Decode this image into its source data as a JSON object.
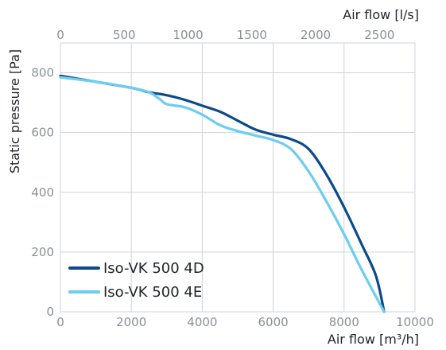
{
  "chart_data": {
    "type": "line",
    "title": "",
    "xlabel": "Air flow [m³/h]",
    "ylabel": "Static pressure [Pa]",
    "x2label": "Air flow [l/s]",
    "xlim": [
      0,
      10000
    ],
    "ylim": [
      0,
      900
    ],
    "x2lim": [
      0,
      2778
    ],
    "xticks": [
      "0",
      "2000",
      "4000",
      "6000",
      "8000",
      "10000"
    ],
    "xtick_values": [
      0,
      2000,
      4000,
      6000,
      8000,
      10000
    ],
    "yticks": [
      "0",
      "200",
      "400",
      "600",
      "800"
    ],
    "ytick_values": [
      0,
      200,
      400,
      600,
      800
    ],
    "x2ticks": [
      "0",
      "500",
      "1000",
      "1500",
      "2000",
      "2500"
    ],
    "x2tick_values": [
      0,
      500,
      1000,
      1500,
      2000,
      2500
    ],
    "grid": true,
    "legend_position": "bottom-left",
    "series": [
      {
        "name": "Iso-VK 500 4D",
        "color": "#0b4a8b",
        "x": [
          0,
          1000,
          2000,
          2500,
          3000,
          3500,
          4000,
          4500,
          5000,
          5500,
          6000,
          6500,
          7000,
          7500,
          8000,
          8500,
          8900,
          9130
        ],
        "y": [
          790,
          770,
          750,
          735,
          725,
          710,
          690,
          670,
          640,
          610,
          593,
          578,
          545,
          460,
          350,
          225,
          120,
          0
        ]
      },
      {
        "name": "Iso-VK 500 4E",
        "color": "#6bcdef",
        "x": [
          0,
          1000,
          2000,
          2500,
          2800,
          3000,
          3500,
          4000,
          4500,
          5000,
          5500,
          6000,
          6500,
          7000,
          7500,
          8000,
          8500,
          9130
        ],
        "y": [
          785,
          770,
          750,
          735,
          712,
          695,
          685,
          660,
          625,
          605,
          590,
          575,
          545,
          470,
          370,
          260,
          140,
          0
        ]
      }
    ]
  }
}
